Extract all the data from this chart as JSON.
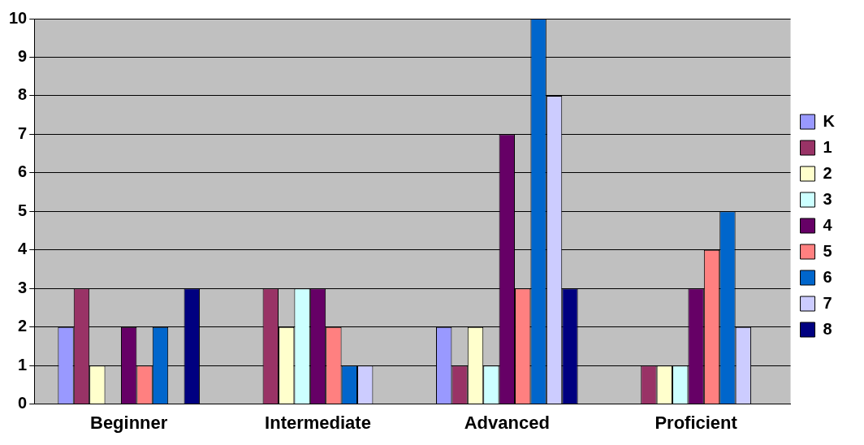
{
  "chart_data": {
    "type": "bar",
    "categories": [
      "Beginner",
      "Intermediate",
      "Advanced",
      "Proficient"
    ],
    "series": [
      {
        "name": "K",
        "color": "#9999ff",
        "values": [
          2,
          0,
          2,
          0
        ]
      },
      {
        "name": "1",
        "color": "#993366",
        "values": [
          3,
          3,
          1,
          1
        ]
      },
      {
        "name": "2",
        "color": "#ffffcc",
        "values": [
          1,
          2,
          2,
          1
        ]
      },
      {
        "name": "3",
        "color": "#ccffff",
        "values": [
          0,
          3,
          1,
          1
        ]
      },
      {
        "name": "4",
        "color": "#660066",
        "values": [
          2,
          3,
          7,
          3
        ]
      },
      {
        "name": "5",
        "color": "#ff8080",
        "values": [
          1,
          2,
          3,
          4
        ]
      },
      {
        "name": "6",
        "color": "#0066cc",
        "values": [
          2,
          1,
          10,
          5
        ]
      },
      {
        "name": "7",
        "color": "#ccccff",
        "values": [
          0,
          1,
          8,
          2
        ]
      },
      {
        "name": "8",
        "color": "#000080",
        "values": [
          3,
          0,
          3,
          0
        ]
      }
    ],
    "ylim": [
      0,
      10
    ],
    "yticks": [
      0,
      1,
      2,
      3,
      4,
      5,
      6,
      7,
      8,
      9,
      10
    ],
    "grid": "y",
    "legend": "right"
  }
}
